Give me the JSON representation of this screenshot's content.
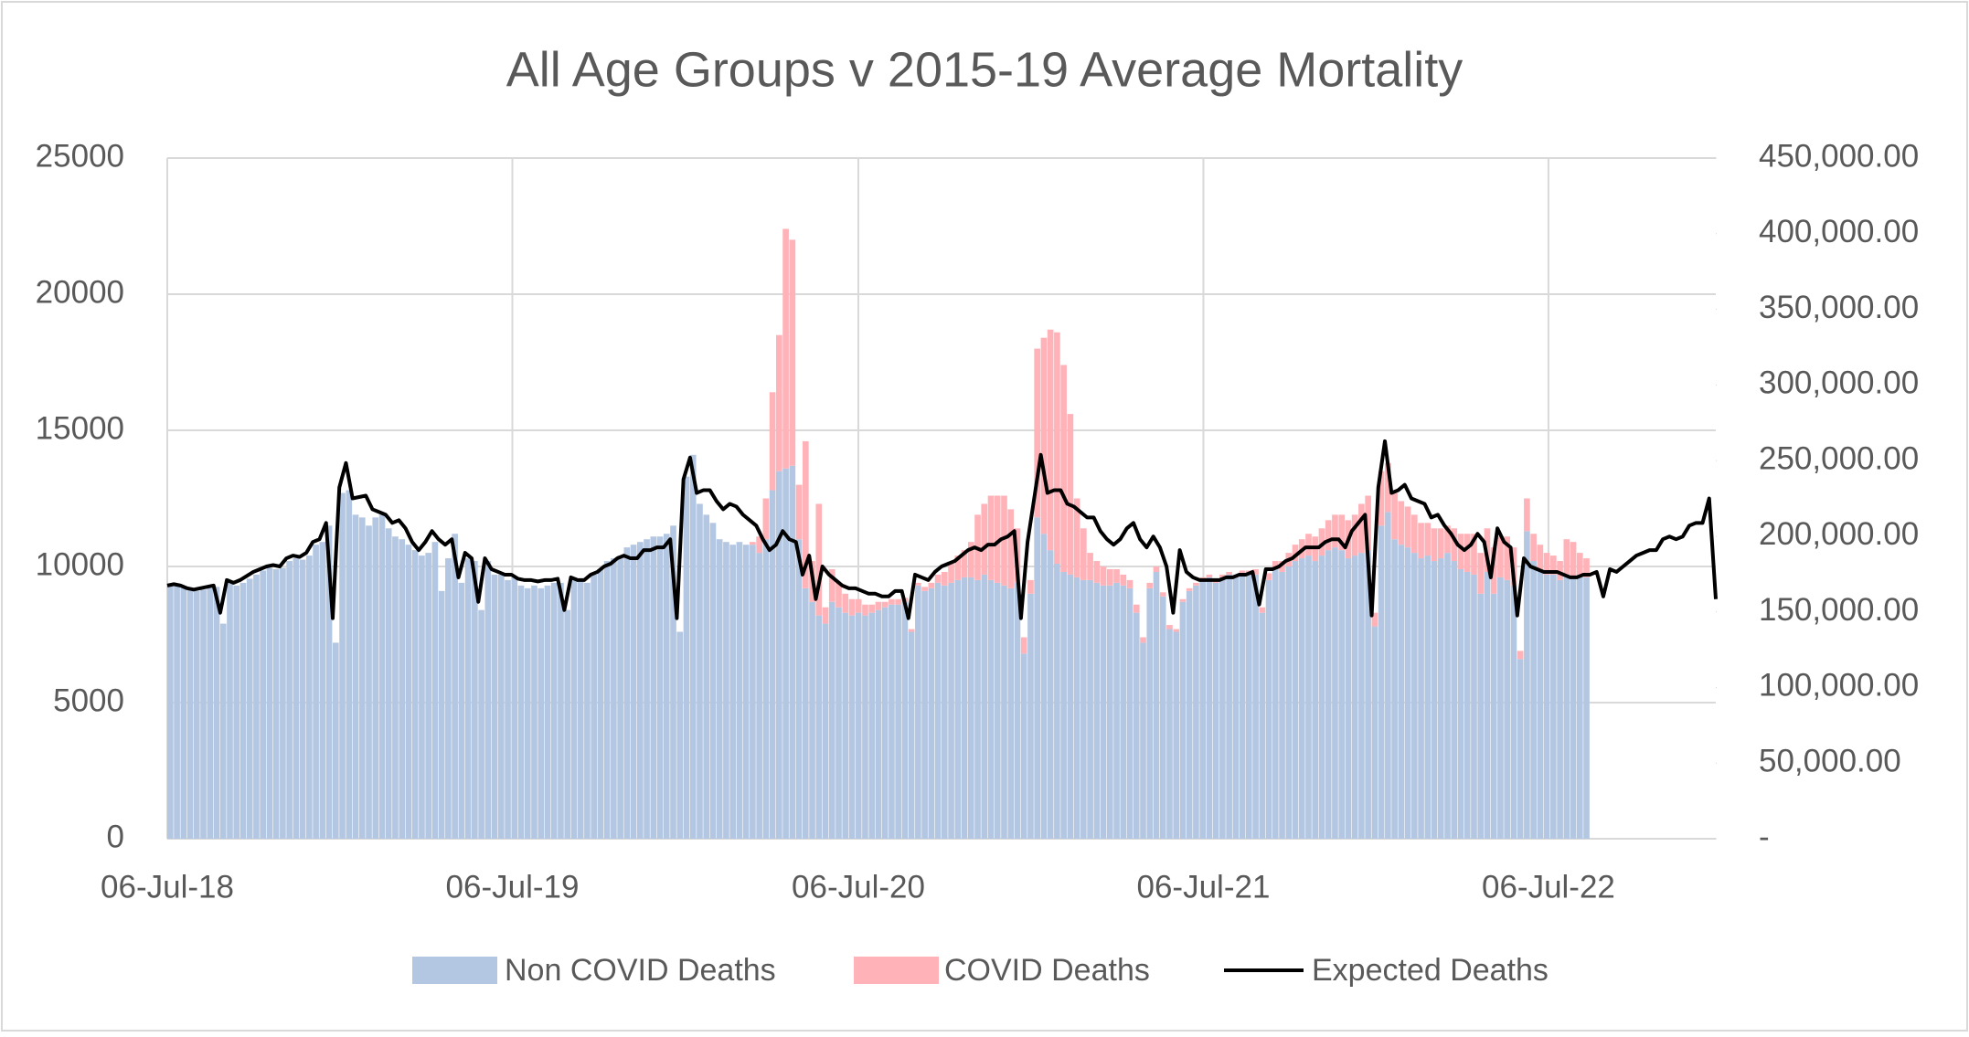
{
  "chart_data": {
    "type": "bar",
    "stacked": true,
    "title": "All Age Groups v 2015-19 Average Mortality",
    "x": [
      "2018-07-06",
      "2018-07-13",
      "2018-07-20",
      "2018-07-27",
      "2018-08-03",
      "2018-08-10",
      "2018-08-17",
      "2018-08-24",
      "2018-08-31",
      "2018-09-07",
      "2018-09-14",
      "2018-09-21",
      "2018-09-28",
      "2018-10-05",
      "2018-10-12",
      "2018-10-19",
      "2018-10-26",
      "2018-11-02",
      "2018-11-09",
      "2018-11-16",
      "2018-11-23",
      "2018-11-30",
      "2018-12-07",
      "2018-12-14",
      "2018-12-21",
      "2018-12-28",
      "2019-01-04",
      "2019-01-11",
      "2019-01-18",
      "2019-01-25",
      "2019-02-01",
      "2019-02-08",
      "2019-02-15",
      "2019-02-22",
      "2019-03-01",
      "2019-03-08",
      "2019-03-15",
      "2019-03-22",
      "2019-03-29",
      "2019-04-05",
      "2019-04-12",
      "2019-04-19",
      "2019-04-26",
      "2019-05-03",
      "2019-05-10",
      "2019-05-17",
      "2019-05-24",
      "2019-05-31",
      "2019-06-07",
      "2019-06-14",
      "2019-06-21",
      "2019-06-28",
      "2019-07-05",
      "2019-07-12",
      "2019-07-19",
      "2019-07-26",
      "2019-08-02",
      "2019-08-09",
      "2019-08-16",
      "2019-08-23",
      "2019-08-30",
      "2019-09-06",
      "2019-09-13",
      "2019-09-20",
      "2019-09-27",
      "2019-10-04",
      "2019-10-11",
      "2019-10-18",
      "2019-10-25",
      "2019-11-01",
      "2019-11-08",
      "2019-11-15",
      "2019-11-22",
      "2019-11-29",
      "2019-12-06",
      "2019-12-13",
      "2019-12-20",
      "2019-12-27",
      "2020-01-03",
      "2020-01-10",
      "2020-01-17",
      "2020-01-24",
      "2020-01-31",
      "2020-02-07",
      "2020-02-14",
      "2020-02-21",
      "2020-02-28",
      "2020-03-06",
      "2020-03-13",
      "2020-03-20",
      "2020-03-27",
      "2020-04-03",
      "2020-04-10",
      "2020-04-17",
      "2020-04-24",
      "2020-05-01",
      "2020-05-08",
      "2020-05-15",
      "2020-05-22",
      "2020-05-29",
      "2020-06-05",
      "2020-06-12",
      "2020-06-19",
      "2020-06-26",
      "2020-07-03",
      "2020-07-10",
      "2020-07-17",
      "2020-07-24",
      "2020-07-31",
      "2020-08-07",
      "2020-08-14",
      "2020-08-21",
      "2020-08-28",
      "2020-09-04",
      "2020-09-11",
      "2020-09-18",
      "2020-09-25",
      "2020-10-02",
      "2020-10-09",
      "2020-10-16",
      "2020-10-23",
      "2020-10-30",
      "2020-11-06",
      "2020-11-13",
      "2020-11-20",
      "2020-11-27",
      "2020-12-04",
      "2020-12-11",
      "2020-12-18",
      "2020-12-25",
      "2021-01-01",
      "2021-01-08",
      "2021-01-15",
      "2021-01-22",
      "2021-01-29",
      "2021-02-05",
      "2021-02-12",
      "2021-02-19",
      "2021-02-26",
      "2021-03-05",
      "2021-03-12",
      "2021-03-19",
      "2021-03-26",
      "2021-04-02",
      "2021-04-09",
      "2021-04-16",
      "2021-04-23",
      "2021-04-30",
      "2021-05-07",
      "2021-05-14",
      "2021-05-21",
      "2021-05-28",
      "2021-06-04",
      "2021-06-11",
      "2021-06-18",
      "2021-06-25",
      "2021-07-02",
      "2021-07-09",
      "2021-07-16",
      "2021-07-23",
      "2021-07-30",
      "2021-08-06",
      "2021-08-13",
      "2021-08-20",
      "2021-08-27",
      "2021-09-03",
      "2021-09-10",
      "2021-09-17",
      "2021-09-24",
      "2021-10-01",
      "2021-10-08",
      "2021-10-15",
      "2021-10-22",
      "2021-10-29",
      "2021-11-05",
      "2021-11-12",
      "2021-11-19",
      "2021-11-26",
      "2021-12-03",
      "2021-12-10",
      "2021-12-17",
      "2021-12-24",
      "2021-12-31",
      "2022-01-07",
      "2022-01-14",
      "2022-01-21",
      "2022-01-28",
      "2022-02-04",
      "2022-02-11",
      "2022-02-18",
      "2022-02-25",
      "2022-03-04",
      "2022-03-11",
      "2022-03-18",
      "2022-03-25",
      "2022-04-01",
      "2022-04-08",
      "2022-04-15",
      "2022-04-22",
      "2022-04-29",
      "2022-05-06",
      "2022-05-13",
      "2022-05-20",
      "2022-05-27",
      "2022-06-03",
      "2022-06-10",
      "2022-06-17",
      "2022-06-24",
      "2022-07-01",
      "2022-07-08",
      "2022-07-15",
      "2022-07-22",
      "2022-07-29",
      "2022-08-05",
      "2022-08-12",
      "2022-08-19",
      "2022-08-26",
      "2022-09-02",
      "2022-09-09",
      "2022-09-16",
      "2022-09-23",
      "2022-09-30",
      "2022-10-07",
      "2022-10-14",
      "2022-10-21",
      "2022-10-28",
      "2022-11-04",
      "2022-11-11",
      "2022-11-18",
      "2022-11-25",
      "2022-12-02",
      "2022-12-09",
      "2022-12-16",
      "2022-12-23",
      "2022-12-30"
    ],
    "series": [
      {
        "name": "Non COVID Deaths",
        "type": "bar",
        "color": "#b4c7e2",
        "values": [
          9300,
          9300,
          9250,
          9150,
          9100,
          9150,
          9200,
          9250,
          7900,
          9400,
          9300,
          9400,
          9550,
          9700,
          9850,
          9950,
          9900,
          9950,
          10200,
          10300,
          10250,
          10400,
          10800,
          10900,
          11500,
          7200,
          12700,
          12800,
          11900,
          11800,
          11500,
          11800,
          11900,
          11400,
          11100,
          11000,
          10800,
          10600,
          10400,
          10500,
          10900,
          9100,
          10300,
          11200,
          9400,
          10300,
          10200,
          8400,
          10200,
          9700,
          9700,
          9500,
          9600,
          9300,
          9200,
          9300,
          9200,
          9300,
          9400,
          9400,
          8400,
          9600,
          9500,
          9400,
          9700,
          9900,
          10200,
          10300,
          10400,
          10700,
          10800,
          10900,
          11000,
          11100,
          11100,
          11200,
          11500,
          7600,
          13300,
          14100,
          12300,
          11900,
          11600,
          11000,
          10900,
          10800,
          10900,
          10800,
          10800,
          10500,
          11000,
          12800,
          13500,
          13600,
          13700,
          11000,
          9200,
          8700,
          8200,
          7900,
          8700,
          8500,
          8300,
          8200,
          8300,
          8200,
          8300,
          8400,
          8500,
          8600,
          8600,
          8700,
          7600,
          9300,
          9100,
          9200,
          9400,
          9300,
          9400,
          9500,
          9600,
          9600,
          9500,
          9700,
          9500,
          9400,
          9300,
          9200,
          9400,
          6800,
          9000,
          11800,
          11200,
          10600,
          10100,
          9800,
          9700,
          9600,
          9500,
          9500,
          9400,
          9300,
          9300,
          9400,
          9300,
          9200,
          8300,
          7200,
          9200,
          9800,
          8900,
          7700,
          7600,
          8700,
          9100,
          9300,
          9500,
          9600,
          9400,
          9600,
          9700,
          9600,
          9700,
          9700,
          9700,
          8300,
          9500,
          9900,
          9800,
          10000,
          10200,
          10300,
          10400,
          10200,
          10400,
          10600,
          10700,
          10600,
          10300,
          10400,
          10500,
          10600,
          7800,
          11500,
          12000,
          11000,
          10800,
          10700,
          10500,
          10300,
          10400,
          10200,
          10300,
          10500,
          10200,
          9900,
          9800,
          9700,
          9000,
          9800,
          9000,
          9600,
          9500,
          9300,
          6600,
          11300,
          10200,
          9900,
          9700,
          9700,
          9500,
          9700,
          9600,
          9700,
          9600,
          null,
          null,
          null,
          null,
          null,
          null,
          null,
          null,
          null,
          null,
          null,
          null,
          null,
          null,
          null,
          null,
          null,
          null,
          null,
          null
        ]
      },
      {
        "name": "COVID Deaths",
        "type": "bar",
        "color": "#ffb3b8",
        "values": [
          0,
          0,
          0,
          0,
          0,
          0,
          0,
          0,
          0,
          0,
          0,
          0,
          0,
          0,
          0,
          0,
          0,
          0,
          0,
          0,
          0,
          0,
          0,
          0,
          0,
          0,
          0,
          0,
          0,
          0,
          0,
          0,
          0,
          0,
          0,
          0,
          0,
          0,
          0,
          0,
          0,
          0,
          0,
          0,
          0,
          0,
          0,
          0,
          0,
          0,
          0,
          0,
          0,
          0,
          0,
          0,
          0,
          0,
          0,
          0,
          0,
          0,
          0,
          0,
          0,
          0,
          0,
          0,
          0,
          0,
          0,
          0,
          0,
          0,
          0,
          0,
          0,
          0,
          0,
          0,
          0,
          0,
          0,
          0,
          0,
          0,
          0,
          0,
          100,
          600,
          1500,
          3600,
          5000,
          8800,
          8300,
          2000,
          5400,
          1500,
          4100,
          600,
          1200,
          900,
          700,
          600,
          500,
          400,
          300,
          300,
          200,
          200,
          200,
          150,
          100,
          100,
          150,
          200,
          300,
          500,
          700,
          900,
          1000,
          1300,
          2400,
          2600,
          3100,
          3200,
          3300,
          2900,
          2000,
          600,
          500,
          6200,
          7200,
          8100,
          8500,
          7600,
          5900,
          2900,
          1900,
          1000,
          800,
          700,
          600,
          500,
          400,
          300,
          300,
          200,
          200,
          200,
          150,
          150,
          100,
          100,
          100,
          100,
          100,
          100,
          100,
          100,
          100,
          100,
          150,
          150,
          200,
          200,
          250,
          300,
          400,
          500,
          600,
          700,
          800,
          900,
          1000,
          1100,
          1200,
          1300,
          1400,
          1500,
          1800,
          2000,
          500,
          2000,
          1800,
          1700,
          1600,
          1500,
          1400,
          1300,
          1200,
          1200,
          1100,
          1000,
          1200,
          1300,
          1400,
          1500,
          1500,
          1600,
          1700,
          1500,
          1600,
          1400,
          300,
          1200,
          1000,
          900,
          800,
          700,
          700,
          1300,
          1300,
          800,
          700,
          null,
          null,
          null,
          null,
          null,
          null,
          null,
          null,
          null,
          null,
          null,
          null,
          null,
          null,
          null,
          null,
          null,
          null,
          null,
          null
        ]
      },
      {
        "name": "Expected Deaths",
        "type": "line",
        "color": "#000000",
        "values": [
          9300,
          9350,
          9300,
          9200,
          9150,
          9200,
          9250,
          9300,
          8300,
          9500,
          9400,
          9500,
          9650,
          9800,
          9900,
          10000,
          10050,
          10000,
          10300,
          10400,
          10350,
          10500,
          10900,
          11000,
          11600,
          8100,
          12900,
          13800,
          12500,
          12550,
          12600,
          12100,
          12000,
          11900,
          11600,
          11700,
          11400,
          10900,
          10600,
          10900,
          11300,
          11000,
          10800,
          11000,
          9600,
          10500,
          10300,
          8700,
          10300,
          9900,
          9800,
          9700,
          9700,
          9550,
          9500,
          9500,
          9450,
          9500,
          9500,
          9550,
          8400,
          9600,
          9500,
          9500,
          9700,
          9800,
          10000,
          10100,
          10300,
          10400,
          10300,
          10300,
          10600,
          10600,
          10700,
          10700,
          11000,
          8100,
          13200,
          14000,
          12700,
          12800,
          12800,
          12400,
          12100,
          12300,
          12200,
          11900,
          11700,
          11500,
          11000,
          10600,
          10800,
          11300,
          11000,
          10900,
          9700,
          10400,
          8800,
          10000,
          9700,
          9500,
          9300,
          9200,
          9200,
          9100,
          9000,
          9000,
          8900,
          8900,
          9100,
          9100,
          8100,
          9700,
          9600,
          9500,
          9800,
          10000,
          10100,
          10200,
          10400,
          10600,
          10700,
          10600,
          10800,
          10800,
          11000,
          11100,
          11300,
          8100,
          10900,
          12500,
          14100,
          12700,
          12800,
          12800,
          12300,
          12200,
          12000,
          11800,
          11800,
          11300,
          11000,
          10800,
          11000,
          11400,
          11600,
          11000,
          10700,
          11100,
          10700,
          10000,
          8300,
          10600,
          9800,
          9600,
          9500,
          9500,
          9500,
          9500,
          9600,
          9600,
          9700,
          9700,
          9800,
          8600,
          9900,
          9900,
          10000,
          10200,
          10300,
          10500,
          10700,
          10700,
          10700,
          10900,
          11000,
          11000,
          10700,
          11300,
          11600,
          11900,
          8200,
          12900,
          14600,
          12700,
          12800,
          13000,
          12500,
          12400,
          12300,
          11800,
          11900,
          11500,
          11200,
          10800,
          10600,
          10800,
          11200,
          10900,
          9600,
          11400,
          10900,
          10700,
          8200,
          10300,
          10000,
          9900,
          9800,
          9800,
          9800,
          9700,
          9600,
          9600,
          9700,
          9700,
          9800,
          8900,
          9900,
          9800,
          10000,
          10200,
          10400,
          10500,
          10600,
          10600,
          11000,
          11100,
          11000,
          11100,
          11500,
          11600,
          11600,
          12500,
          8800
        ]
      }
    ],
    "xlim": [
      "2018-07-06",
      "2022-12-30"
    ],
    "xticks": [
      {
        "value": "2018-07-06",
        "label": "06-Jul-18"
      },
      {
        "value": "2019-07-06",
        "label": "06-Jul-19"
      },
      {
        "value": "2020-07-06",
        "label": "06-Jul-20"
      },
      {
        "value": "2021-07-06",
        "label": "06-Jul-21"
      },
      {
        "value": "2022-07-06",
        "label": "06-Jul-22"
      }
    ],
    "ylim": [
      0,
      25000
    ],
    "yticks": [
      0,
      5000,
      10000,
      15000,
      20000,
      25000
    ],
    "y2lim": [
      0,
      450000
    ],
    "y2ticks": [
      {
        "value": 0,
        "label": "-"
      },
      {
        "value": 50000,
        "label": "50,000.00"
      },
      {
        "value": 100000,
        "label": "100,000.00"
      },
      {
        "value": 150000,
        "label": "150,000.00"
      },
      {
        "value": 200000,
        "label": "200,000.00"
      },
      {
        "value": 250000,
        "label": "250,000.00"
      },
      {
        "value": 300000,
        "label": "300,000.00"
      },
      {
        "value": 350000,
        "label": "350,000.00"
      },
      {
        "value": 400000,
        "label": "400,000.00"
      },
      {
        "value": 450000,
        "label": "450,000.00"
      }
    ],
    "grid": true,
    "legend": "bottom"
  }
}
